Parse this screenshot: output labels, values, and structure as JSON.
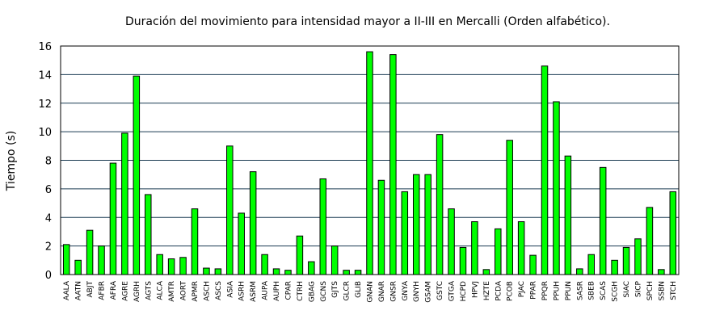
{
  "chart_data": {
    "type": "bar",
    "title": "Duración del movimiento para intensidad mayor a II-III en Mercalli (Orden alfabético).",
    "xlabel": "",
    "ylabel": "Tiempo (s)",
    "ylim": [
      0,
      16
    ],
    "yticks": [
      0,
      2,
      4,
      6,
      8,
      10,
      12,
      14,
      16
    ],
    "grid": "horizontal",
    "bar_color": "#00ff00",
    "bar_edge_color": "#000000",
    "grid_color": "#1a3a52",
    "categories": [
      "AALA",
      "AATN",
      "ABJT",
      "AFBR",
      "AFRA",
      "AGRE",
      "AGRH",
      "AGTS",
      "ALCA",
      "AMTR",
      "AORT",
      "APMR",
      "ASCH",
      "ASCS",
      "ASIA",
      "ASRH",
      "ASRM",
      "AUPA",
      "AUPH",
      "CPAR",
      "CTRH",
      "GBAG",
      "GCNS",
      "GJTS",
      "GLCR",
      "GLIB",
      "GNAN",
      "GNAR",
      "GNSR",
      "GNYA",
      "GNYH",
      "GSAM",
      "GSTC",
      "GTGA",
      "HCPD",
      "HPVJ",
      "HZTE",
      "PCDA",
      "PCOB",
      "PJAC",
      "PPAR",
      "PPQR",
      "PPUH",
      "PPUN",
      "SASR",
      "SBEB",
      "SCAS",
      "SCGH",
      "SIAC",
      "SICP",
      "SPCH",
      "SSBN",
      "STCH"
    ],
    "values": [
      2.1,
      1.0,
      3.1,
      2.0,
      7.8,
      9.9,
      13.9,
      5.6,
      1.4,
      1.1,
      1.2,
      4.6,
      0.45,
      0.4,
      9.0,
      4.3,
      7.2,
      1.4,
      0.4,
      0.3,
      2.7,
      0.9,
      6.7,
      2.0,
      0.3,
      0.3,
      15.6,
      6.6,
      15.4,
      5.8,
      7.0,
      7.0,
      9.8,
      4.6,
      1.9,
      3.7,
      0.35,
      3.2,
      9.4,
      3.7,
      1.35,
      14.6,
      12.1,
      8.3,
      0.4,
      1.4,
      7.5,
      1.0,
      1.9,
      2.5,
      4.7,
      0.35,
      5.8
    ]
  }
}
